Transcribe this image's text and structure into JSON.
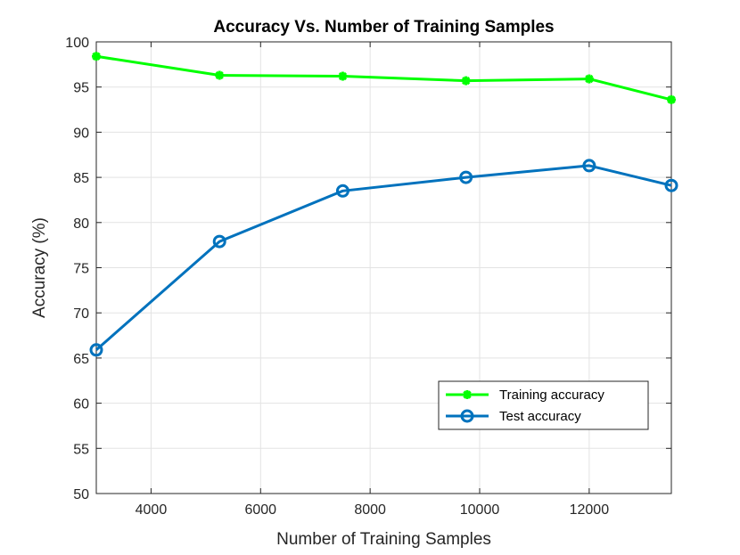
{
  "chart_data": {
    "type": "line",
    "title": "Accuracy Vs. Number of Training Samples",
    "xlabel": "Number of Training Samples",
    "ylabel": "Accuracy (%)",
    "xlim": [
      3000,
      13500
    ],
    "ylim": [
      50,
      100
    ],
    "xticks": [
      4000,
      6000,
      8000,
      10000,
      12000
    ],
    "yticks": [
      50,
      55,
      60,
      65,
      70,
      75,
      80,
      85,
      90,
      95,
      100
    ],
    "grid": true,
    "legend_position": "bottom-right",
    "x": [
      3000,
      5250,
      7500,
      9750,
      12000,
      13500
    ],
    "series": [
      {
        "name": "Training accuracy",
        "values": [
          98.4,
          96.3,
          96.2,
          95.7,
          95.9,
          93.6
        ],
        "color": "#00ff00",
        "marker": "asterisk"
      },
      {
        "name": "Test accuracy",
        "values": [
          65.9,
          77.9,
          83.5,
          85.0,
          86.3,
          84.1
        ],
        "color": "#0072bd",
        "marker": "circle"
      }
    ]
  }
}
